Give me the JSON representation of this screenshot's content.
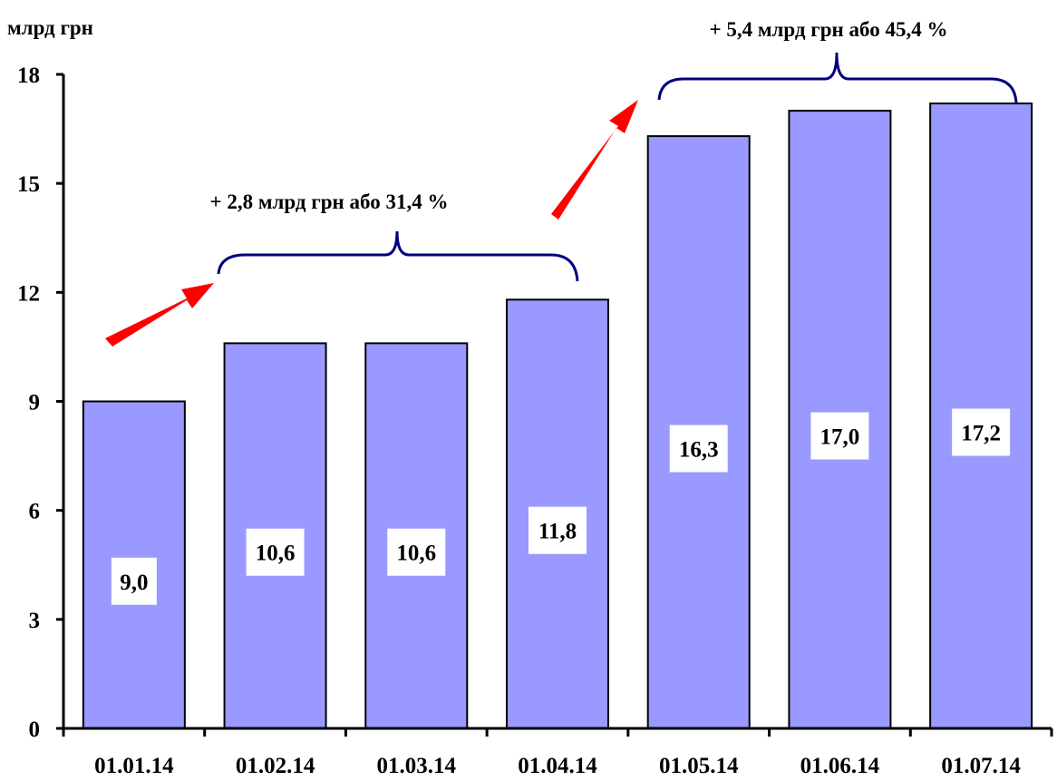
{
  "chart_data": {
    "type": "bar",
    "ylabel": "млрд грн",
    "categories": [
      "01.01.14",
      "01.02.14",
      "01.03.14",
      "01.04.14",
      "01.05.14",
      "01.06.14",
      "01.07.14"
    ],
    "values": [
      9.0,
      10.6,
      10.6,
      11.8,
      16.3,
      17.0,
      17.2
    ],
    "value_labels": [
      "9,0",
      "10,6",
      "10,6",
      "11,8",
      "16,3",
      "17,0",
      "17,2"
    ],
    "ylim": [
      0,
      18
    ],
    "yticks": [
      0,
      3,
      6,
      9,
      12,
      15,
      18
    ],
    "grid": false,
    "legend": "none",
    "annotations": [
      {
        "text": "+ 2,8 млрд грн або 31,4 %",
        "from_category": "01.02.14",
        "to_category": "01.04.14"
      },
      {
        "text": "+ 5,4 млрд грн або 45,4 %",
        "from_category": "01.05.14",
        "to_category": "01.07.14"
      }
    ]
  },
  "colors": {
    "bar_fill": "#9999ff",
    "bar_stroke": "#000000",
    "brace": "#000080",
    "arrow": "#ff0000"
  }
}
